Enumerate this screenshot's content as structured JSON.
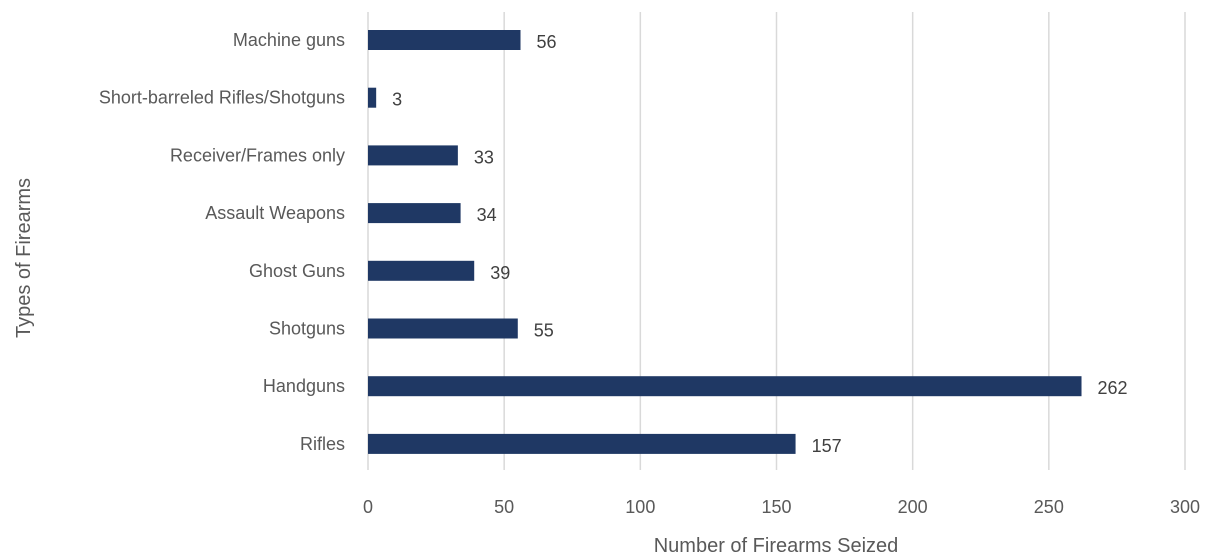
{
  "chart_data": {
    "type": "bar",
    "orientation": "horizontal",
    "categories": [
      "Machine guns",
      "Short-barreled Rifles/Shotguns",
      "Receiver/Frames only",
      "Assault Weapons",
      "Ghost Guns",
      "Shotguns",
      "Handguns",
      "Rifles"
    ],
    "values": [
      56,
      3,
      33,
      34,
      39,
      55,
      262,
      157
    ],
    "title": "",
    "xlabel": "Number of Firearms Seized",
    "ylabel": "Types of Firearms",
    "xlim": [
      0,
      300
    ],
    "xticks": [
      "0",
      "50",
      "100",
      "150",
      "200",
      "250",
      "300"
    ],
    "data_labels": true,
    "grid": "vertical",
    "legend": "none",
    "colors": {
      "bar": "#1f3864",
      "grid": "#d9d9d9",
      "text": "#595959"
    }
  }
}
